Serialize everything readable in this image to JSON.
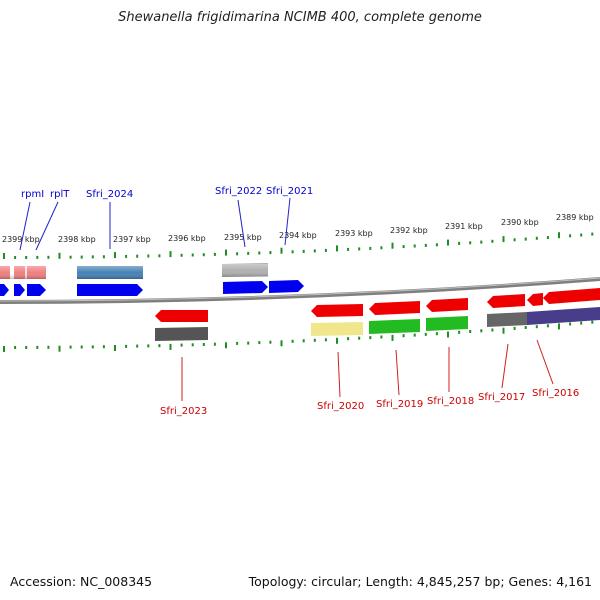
{
  "title": "Shewanella frigidimarina NCIMB 400, complete genome",
  "accession": "Accession: NC_008345",
  "topology": "Topology: circular; Length: 4,845,257 bp; Genes: 4,161",
  "colors": {
    "backbone": "#7f7f7f",
    "tick": "#228b22",
    "tick_label": "#222222",
    "label_top": "#0000cc",
    "label_bottom": "#cc0000",
    "connector_top": "#2222cc",
    "connector_bottom": "#cc2222"
  },
  "kbp_ticks": [
    "2399 kbp",
    "2398 kbp",
    "2397 kbp",
    "2396 kbp",
    "2395 kbp",
    "2394 kbp",
    "2393 kbp",
    "2392 kbp",
    "2391 kbp",
    "2390 kbp",
    "2389 kbp"
  ],
  "top_labels": [
    "rpmI",
    "rplT",
    "Sfri_2024",
    "Sfri_2022",
    "Sfri_2021"
  ],
  "bottom_labels": [
    "Sfri_2023",
    "Sfri_2020",
    "Sfri_2019",
    "Sfri_2018",
    "Sfri_2017",
    "Sfri_2016"
  ],
  "features": [
    {
      "name": "feature-pink-1",
      "track": "fwd-upper",
      "color": "#f08080"
    },
    {
      "name": "feature-pink-2",
      "track": "fwd-upper",
      "color": "#f08080"
    },
    {
      "name": "feature-steelblue",
      "track": "fwd-upper",
      "color": "#4682b4"
    },
    {
      "name": "feature-grey-upper",
      "track": "fwd-upper",
      "color": "#b0b0b0"
    },
    {
      "name": "gene-left-edge",
      "track": "fwd",
      "color": "#0000ee"
    },
    {
      "name": "gene-rpmI",
      "track": "fwd",
      "color": "#0000ee"
    },
    {
      "name": "gene-rplT",
      "track": "fwd",
      "color": "#0000ee"
    },
    {
      "name": "gene-Sfri_2024",
      "track": "fwd",
      "color": "#0000ee"
    },
    {
      "name": "gene-Sfri_2022",
      "track": "fwd",
      "color": "#0000ee"
    },
    {
      "name": "gene-Sfri_2021",
      "track": "fwd",
      "color": "#0000ee"
    },
    {
      "name": "gene-Sfri_2023",
      "track": "rev",
      "color": "#ee0000"
    },
    {
      "name": "gene-Sfri_2020",
      "track": "rev",
      "color": "#ee0000"
    },
    {
      "name": "gene-Sfri_2019",
      "track": "rev",
      "color": "#ee0000"
    },
    {
      "name": "gene-Sfri_2018",
      "track": "rev",
      "color": "#ee0000"
    },
    {
      "name": "gene-Sfri_2017",
      "track": "rev",
      "color": "#ee0000"
    },
    {
      "name": "gene-Sfri_2016a",
      "track": "rev",
      "color": "#ee0000"
    },
    {
      "name": "gene-Sfri_2016b",
      "track": "rev",
      "color": "#ee0000"
    },
    {
      "name": "feature-darkgrey-2023",
      "track": "rev-lower",
      "color": "#555555"
    },
    {
      "name": "feature-khaki-2020",
      "track": "rev-lower",
      "color": "#f0e68c"
    },
    {
      "name": "feature-green-2019",
      "track": "rev-lower",
      "color": "#22bb22"
    },
    {
      "name": "feature-green-2018",
      "track": "rev-lower",
      "color": "#22bb22"
    },
    {
      "name": "feature-grey-2017",
      "track": "rev-lower",
      "color": "#666666"
    },
    {
      "name": "feature-slateblue-2016",
      "track": "rev-lower",
      "color": "#483d8b"
    }
  ]
}
